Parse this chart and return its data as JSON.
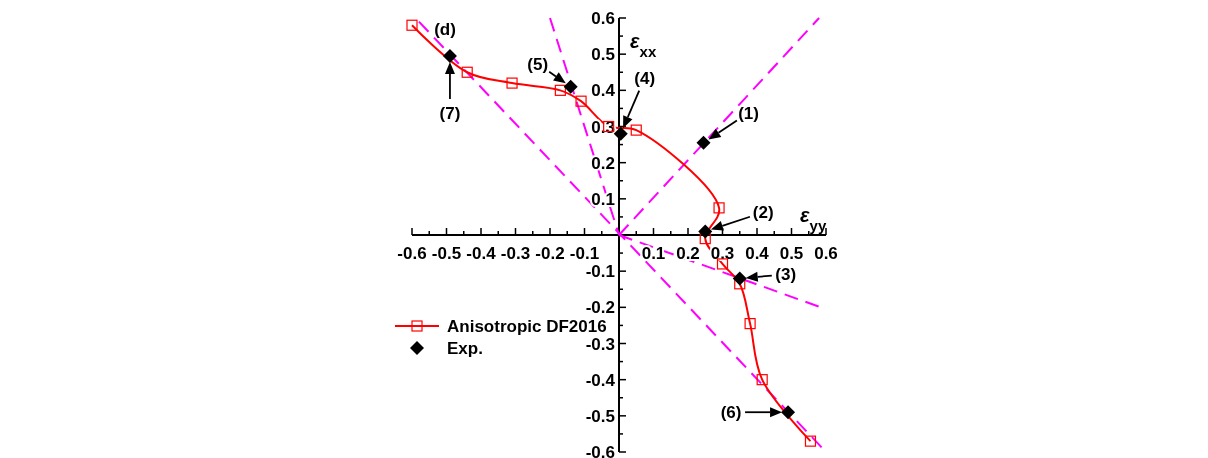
{
  "chart_data": {
    "type": "line",
    "xlabel": "ε$_{yy}$",
    "ylabel": "ε$_{xx}$",
    "xlim": [
      -0.6,
      0.6
    ],
    "ylim": [
      -0.6,
      0.6
    ],
    "xticks": [
      -0.6,
      -0.5,
      -0.4,
      -0.3,
      -0.2,
      -0.1,
      0.1,
      0.2,
      0.3,
      0.4,
      0.5,
      0.6
    ],
    "yticks": [
      -0.6,
      -0.5,
      -0.4,
      -0.3,
      -0.2,
      -0.1,
      0.1,
      0.2,
      0.3,
      0.4,
      0.5,
      0.6
    ],
    "grid": false,
    "legend": "left",
    "series": [
      {
        "name": "Anisotropic DF2016",
        "color": "#ff0000",
        "marker": "square",
        "line_style": "solid",
        "x": [
          -0.6,
          -0.44,
          -0.31,
          -0.17,
          -0.11,
          -0.03,
          0.05,
          0.29,
          0.25,
          0.3,
          0.35,
          0.38,
          0.415,
          0.555
        ],
        "values": [
          0.58,
          0.45,
          0.42,
          0.4,
          0.37,
          0.3,
          0.29,
          0.075,
          -0.01,
          -0.08,
          -0.135,
          -0.245,
          -0.4,
          -0.57
        ]
      },
      {
        "name": "Exp.",
        "type": "scatter",
        "color": "#000000",
        "marker": "diamond",
        "x": [
          0.245,
          0.25,
          0.35,
          0.005,
          -0.14,
          0.49,
          -0.49
        ],
        "values": [
          0.255,
          0.01,
          -0.12,
          0.28,
          0.41,
          -0.49,
          0.495
        ]
      },
      {
        "type": "line",
        "color": "#ff00ff",
        "marker": "none",
        "line_style": "dashed",
        "x": [
          0,
          0.58
        ],
        "values": [
          0,
          0.6
        ]
      },
      {
        "type": "line",
        "color": "#ff00ff",
        "marker": "none",
        "line_style": "dashed",
        "x": [
          -0.2,
          0
        ],
        "values": [
          0.6,
          0
        ]
      },
      {
        "type": "line",
        "color": "#ff00ff",
        "marker": "none",
        "line_style": "dashed",
        "x": [
          -0.58,
          0.6
        ],
        "values": [
          0.59,
          -0.6
        ]
      },
      {
        "type": "line",
        "color": "#ff00ff",
        "marker": "none",
        "line_style": "dashed",
        "x": [
          0,
          0.6
        ],
        "values": [
          0,
          -0.205
        ]
      }
    ],
    "annotations": [
      {
        "text": "(1)",
        "x": 0.245,
        "y": 0.255
      },
      {
        "text": "(2)",
        "x": 0.25,
        "y": 0.01
      },
      {
        "text": "(3)",
        "x": 0.35,
        "y": -0.12
      },
      {
        "text": "(4)",
        "x": 0.005,
        "y": 0.28
      },
      {
        "text": "(5)",
        "x": -0.14,
        "y": 0.41
      },
      {
        "text": "(6)",
        "x": 0.49,
        "y": -0.49
      },
      {
        "text": "(7)",
        "x": -0.49,
        "y": 0.495
      },
      "(d)"
    ]
  }
}
